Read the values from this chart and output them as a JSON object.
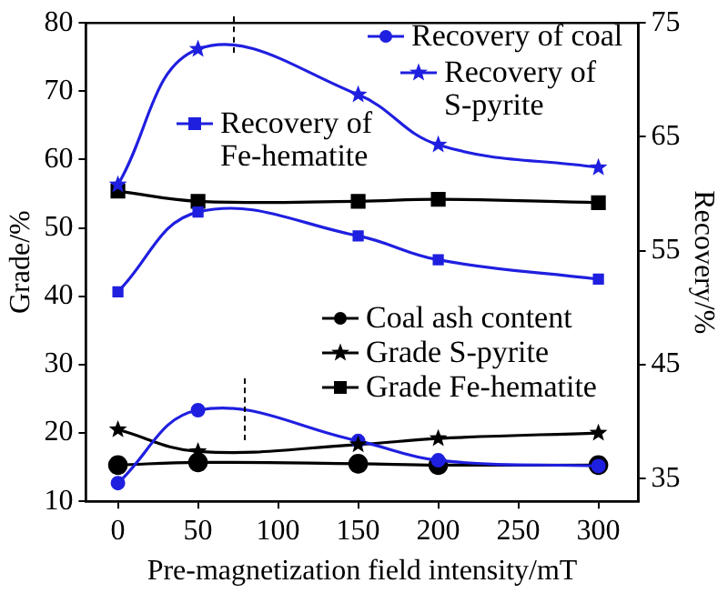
{
  "chart_data": {
    "type": "line",
    "xlabel": "Pre-magnetization field intensity/mT",
    "ylabel": "Grade/%",
    "y2label": "Recovery/%",
    "x": [
      0,
      50,
      150,
      200,
      300
    ],
    "xlim": [
      -20,
      325
    ],
    "xticks": [
      0,
      50,
      100,
      150,
      200,
      250,
      300
    ],
    "ylim": [
      10,
      80
    ],
    "yticks": [
      10,
      20,
      30,
      40,
      50,
      60,
      70,
      80
    ],
    "y2lim": [
      33,
      75
    ],
    "y2ticks": [
      35,
      45,
      55,
      65,
      75
    ],
    "grid": false,
    "legend": "top right",
    "series": [
      {
        "name": "Recovery of coal",
        "color": "#1f1fe0",
        "marker": "circle",
        "axis": "y2",
        "values": [
          34.6,
          41.0,
          38.3,
          36.6,
          36.1
        ]
      },
      {
        "name": "Recovery of S-pyrite",
        "color": "#1f1fe0",
        "marker": "star",
        "axis": "y2",
        "values": [
          60.8,
          72.7,
          68.7,
          64.3,
          62.3
        ]
      },
      {
        "name": "Recovery of Fe-hematite",
        "color": "#1f1fe0",
        "marker": "square",
        "axis": "y2",
        "values": [
          51.4,
          58.4,
          56.3,
          54.2,
          52.5
        ]
      },
      {
        "name": "Coal ash content",
        "color": "#000000",
        "marker": "circle",
        "axis": "y",
        "values": [
          15.3,
          15.7,
          15.5,
          15.3,
          15.3
        ]
      },
      {
        "name": "Grade S-pyrite",
        "color": "#000000",
        "marker": "star",
        "axis": "y",
        "values": [
          20.5,
          17.3,
          18.3,
          19.2,
          20.0
        ]
      },
      {
        "name": "Grade Fe-hematite",
        "color": "#000000",
        "marker": "square",
        "axis": "y",
        "values": [
          55.4,
          53.9,
          53.9,
          54.2,
          53.7
        ]
      }
    ]
  }
}
